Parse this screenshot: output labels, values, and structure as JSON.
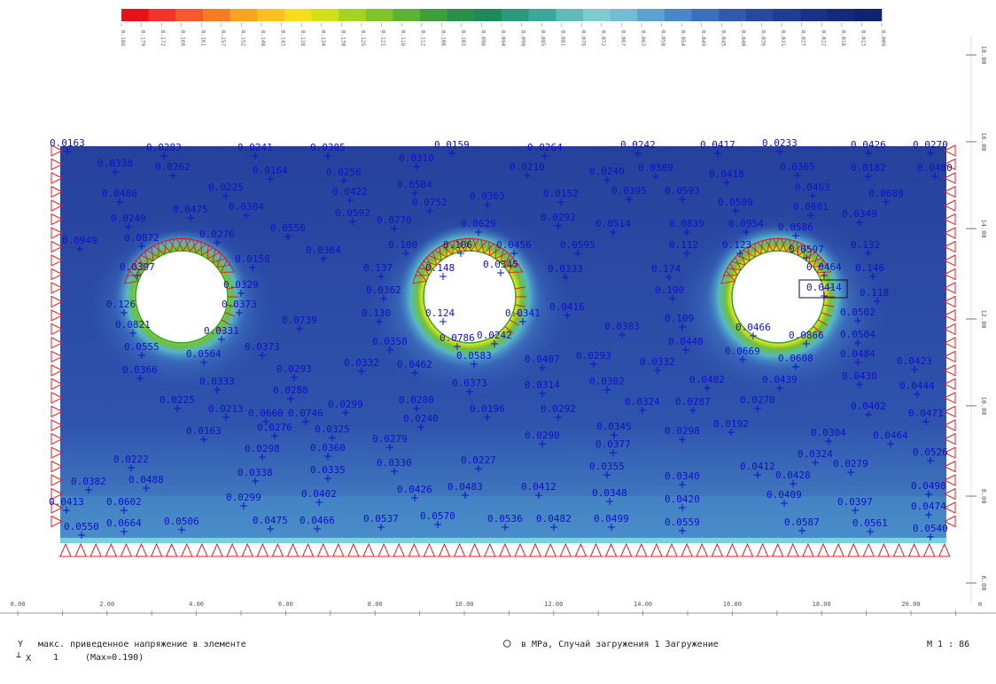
{
  "legend": {
    "colors": [
      "#e8101a",
      "#f0342a",
      "#f55a2c",
      "#f77b25",
      "#f9a41f",
      "#fcc11f",
      "#f6de1c",
      "#d2df14",
      "#a6d321",
      "#7fc428",
      "#5db331",
      "#3f9e3c",
      "#2a8f4a",
      "#1e8a5a",
      "#2b9a7a",
      "#3aa898",
      "#5fbab8",
      "#7ecbd0",
      "#74bcd6",
      "#5aa2d2",
      "#4a86c8",
      "#3c6fbe",
      "#3259b0",
      "#2848a2",
      "#213c93",
      "#1b3187",
      "#162a7c",
      "#11236f"
    ],
    "values": [
      "0.186",
      "0.179",
      "0.172",
      "0.166",
      "0.161",
      "0.157",
      "0.152",
      "0.148",
      "0.143",
      "0.138",
      "0.134",
      "0.130",
      "0.125",
      "0.121",
      "0.116",
      "0.112",
      "0.108",
      "0.103",
      "0.098",
      "0.094",
      "0.090",
      "0.085",
      "0.081",
      "0.076",
      "0.072",
      "0.067",
      "0.063",
      "0.058",
      "0.054",
      "0.049",
      "0.045",
      "0.040",
      "0.036",
      "0.031",
      "0.027",
      "0.022",
      "0.018",
      "0.013",
      "0.009"
    ]
  },
  "axes": {
    "x_ticks": [
      "0.00",
      "2.00",
      "4.00",
      "6.00",
      "8.00",
      "10.00",
      "12.00",
      "14.00",
      "16.00",
      "18.00",
      "20.00"
    ],
    "x_unit": "m",
    "y_ticks": [
      "18.00",
      "16.00",
      "14.00",
      "12.00",
      "10.00",
      "8.00",
      "6.00"
    ]
  },
  "values": [
    {
      "t": "0.0163"
    },
    {
      "t": "0.0283"
    },
    {
      "t": "0.0241"
    },
    {
      "t": "0.0305"
    },
    {
      "t": "0.0159"
    },
    {
      "t": "0.0264"
    },
    {
      "t": "0.0242"
    },
    {
      "t": "0.0417"
    },
    {
      "t": "0.0233"
    },
    {
      "t": "0.0426"
    },
    {
      "t": "0.0270"
    },
    {
      "t": "0.0338"
    },
    {
      "t": "0.0262"
    },
    {
      "t": "0.0164"
    },
    {
      "t": "0.0256"
    },
    {
      "t": "0.0310"
    },
    {
      "t": "0.0210"
    },
    {
      "t": "0.0240"
    },
    {
      "t": "0.0389"
    },
    {
      "t": "0.0418"
    },
    {
      "t": "0.0365"
    },
    {
      "t": "0.0182"
    },
    {
      "t": "0.0480"
    },
    {
      "t": "0.0486"
    },
    {
      "t": "0.0225"
    },
    {
      "t": "0.0422"
    },
    {
      "t": "0.0504"
    },
    {
      "t": "0.0363"
    },
    {
      "t": "0.0152"
    },
    {
      "t": "0.0395"
    },
    {
      "t": "0.0593"
    },
    {
      "t": "0.0589"
    },
    {
      "t": "0.0463"
    },
    {
      "t": "0.0689"
    },
    {
      "t": "0.0475"
    },
    {
      "t": "0.0384"
    },
    {
      "t": "0.0752"
    },
    {
      "t": "0.0601"
    },
    {
      "t": "0.0249"
    },
    {
      "t": "0.0592"
    },
    {
      "t": "0.0770"
    },
    {
      "t": "0.0629"
    },
    {
      "t": "0.0292"
    },
    {
      "t": "0.0514"
    },
    {
      "t": "0.0839"
    },
    {
      "t": "0.0954"
    },
    {
      "t": "0.0586"
    },
    {
      "t": "0.0349"
    },
    {
      "t": "0.0949"
    },
    {
      "t": "0.0872"
    },
    {
      "t": "0.0276"
    },
    {
      "t": "0.0556"
    },
    {
      "t": "0.100"
    },
    {
      "t": "0.106"
    },
    {
      "t": "0.0456"
    },
    {
      "t": "0.0595"
    },
    {
      "t": "0.112"
    },
    {
      "t": "0.123"
    },
    {
      "t": "0.0597"
    },
    {
      "t": "0.132"
    },
    {
      "t": "0.0397"
    },
    {
      "t": "0.0158"
    },
    {
      "t": "0.0364"
    },
    {
      "t": "0.137"
    },
    {
      "t": "0.148"
    },
    {
      "t": "0.0345"
    },
    {
      "t": "0.0333"
    },
    {
      "t": "0.174"
    },
    {
      "t": "0.0464"
    },
    {
      "t": "0.146"
    },
    {
      "t": "0.0329"
    },
    {
      "t": "0.0362"
    },
    {
      "t": "0.190"
    },
    {
      "t": "0.0414"
    },
    {
      "t": "0.118"
    },
    {
      "t": "0.126"
    },
    {
      "t": "0.0373"
    },
    {
      "t": "0.130"
    },
    {
      "t": "0.124"
    },
    {
      "t": "0.0341"
    },
    {
      "t": "0.0416"
    },
    {
      "t": "0.109"
    },
    {
      "t": "0.0466"
    },
    {
      "t": "0.0502"
    },
    {
      "t": "0.0821"
    },
    {
      "t": "0.0331"
    },
    {
      "t": "0.0739"
    },
    {
      "t": "0.0786"
    },
    {
      "t": "0.0242"
    },
    {
      "t": "0.0383"
    },
    {
      "t": "0.0440"
    },
    {
      "t": "0.0866"
    },
    {
      "t": "0.0504"
    },
    {
      "t": "0.0555"
    },
    {
      "t": "0.0373"
    },
    {
      "t": "0.0564"
    },
    {
      "t": "0.0358"
    },
    {
      "t": "0.0583"
    },
    {
      "t": "0.0407"
    },
    {
      "t": "0.0669"
    },
    {
      "t": "0.0608"
    },
    {
      "t": "0.0484"
    },
    {
      "t": "0.0366"
    },
    {
      "t": "0.0293"
    },
    {
      "t": "0.0332"
    },
    {
      "t": "0.0462"
    },
    {
      "t": "0.0293"
    },
    {
      "t": "0.0332"
    },
    {
      "t": "0.0402"
    },
    {
      "t": "0.0439"
    },
    {
      "t": "0.0430"
    },
    {
      "t": "0.0423"
    },
    {
      "t": "0.0333"
    },
    {
      "t": "0.0288"
    },
    {
      "t": "0.0373"
    },
    {
      "t": "0.0314"
    },
    {
      "t": "0.0302"
    },
    {
      "t": "0.0444"
    },
    {
      "t": "0.0225"
    },
    {
      "t": "0.0280"
    },
    {
      "t": "0.0299"
    },
    {
      "t": "0.0196"
    },
    {
      "t": "0.0292"
    },
    {
      "t": "0.0324"
    },
    {
      "t": "0.0287"
    },
    {
      "t": "0.0270"
    },
    {
      "t": "0.0402"
    },
    {
      "t": "0.0213"
    },
    {
      "t": "0.0240"
    },
    {
      "t": "0.0471"
    },
    {
      "t": "0.0163"
    },
    {
      "t": "0.0276"
    },
    {
      "t": "0.0325"
    },
    {
      "t": "0.0279"
    },
    {
      "t": "0.0345"
    },
    {
      "t": "0.0290"
    },
    {
      "t": "0.0298"
    },
    {
      "t": "0.0304"
    },
    {
      "t": "0.0464"
    },
    {
      "t": "0.0298"
    },
    {
      "t": "0.0360"
    },
    {
      "t": "0.0377"
    },
    {
      "t": "0.0192"
    },
    {
      "t": "0.0324"
    },
    {
      "t": "0.0526"
    },
    {
      "t": "0.0222"
    },
    {
      "t": "0.0330"
    },
    {
      "t": "0.0227"
    },
    {
      "t": "0.0338"
    },
    {
      "t": "0.0335"
    },
    {
      "t": "0.0355"
    },
    {
      "t": "0.0412"
    },
    {
      "t": "0.0428"
    },
    {
      "t": "0.0279"
    },
    {
      "t": "0.0382"
    },
    {
      "t": "0.0488"
    },
    {
      "t": "0.0340"
    },
    {
      "t": "0.0299"
    },
    {
      "t": "0.0402"
    },
    {
      "t": "0.0426"
    },
    {
      "t": "0.0483"
    },
    {
      "t": "0.0412"
    },
    {
      "t": "0.0348"
    },
    {
      "t": "0.0409"
    },
    {
      "t": "0.0498"
    },
    {
      "t": "0.0413"
    },
    {
      "t": "0.0602"
    },
    {
      "t": "0.0420"
    },
    {
      "t": "0.0397"
    },
    {
      "t": "0.0474"
    },
    {
      "t": "0.0550"
    },
    {
      "t": "0.0664"
    },
    {
      "t": "0.0506"
    },
    {
      "t": "0.0475"
    },
    {
      "t": "0.0466"
    },
    {
      "t": "0.0537"
    },
    {
      "t": "0.0570"
    },
    {
      "t": "0.0536"
    },
    {
      "t": "0.0482"
    },
    {
      "t": "0.0499"
    },
    {
      "t": "0.0559"
    },
    {
      "t": "0.0587"
    },
    {
      "t": "0.0561"
    },
    {
      "t": "0.0540"
    },
    {
      "t": "0.0660"
    },
    {
      "t": "0.0746"
    }
  ],
  "footer": {
    "axis_y": "Y",
    "axis_x": "X",
    "description": "макс. приведенное напряжение в элементе",
    "index": "1",
    "max_label": "(Max=0.190)",
    "units_label": "в MPa, Случай загружения 1  Загружение",
    "scale": "M 1 : 86"
  }
}
